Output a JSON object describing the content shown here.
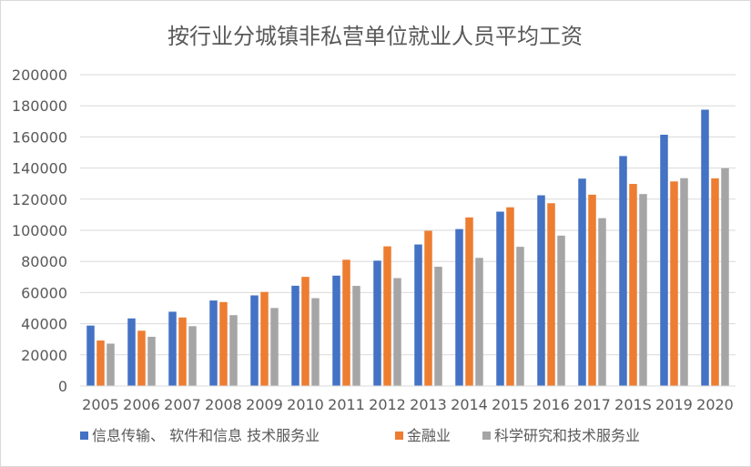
{
  "chart_data": {
    "type": "bar",
    "title": "按行业分城镇非私营单位就业人员平均工资",
    "xlabel": "",
    "ylabel": "",
    "ylim": [
      0,
      200000
    ],
    "yticks": [
      0,
      20000,
      40000,
      60000,
      80000,
      100000,
      120000,
      140000,
      160000,
      180000,
      200000
    ],
    "grid": true,
    "legend_position": "bottom",
    "categories": [
      "2005",
      "2006",
      "2007",
      "2008",
      "2009",
      "2010",
      "2011",
      "2012",
      "2013",
      "2014",
      "2015",
      "2016",
      "2017",
      "201S",
      "2019",
      "2020"
    ],
    "series": [
      {
        "name": "信息传输、 软件和信息 技术服务业",
        "color": "#4472c4",
        "values": [
          38800,
          43400,
          47700,
          54900,
          58200,
          64400,
          70900,
          80500,
          90900,
          100800,
          112000,
          122500,
          133200,
          147700,
          161400,
          177500
        ]
      },
      {
        "name": "金融业",
        "color": "#ed7d31",
        "values": [
          29200,
          35500,
          44000,
          53900,
          60400,
          70100,
          81100,
          89700,
          99700,
          108300,
          114800,
          117400,
          122900,
          129800,
          131400,
          133400
        ]
      },
      {
        "name": "科学研究和技术服务业",
        "color": "#a5a5a5",
        "values": [
          27200,
          31600,
          38400,
          45500,
          50100,
          56400,
          64300,
          69300,
          76600,
          82300,
          89400,
          96600,
          107800,
          123300,
          133500,
          139900
        ]
      }
    ]
  }
}
